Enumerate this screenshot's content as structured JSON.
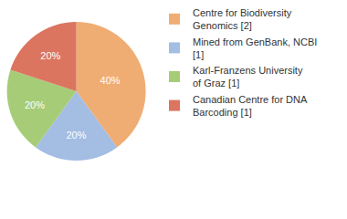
{
  "chart_data": {
    "type": "pie",
    "categories": [
      "Centre for Biodiversity Genomics [2]",
      "Mined from GenBank, NCBI [1]",
      "Karl-Franzens University of Graz [1]",
      "Canadian Centre for DNA Barcoding [1]"
    ],
    "values": [
      40,
      20,
      20,
      20
    ],
    "value_labels": [
      "40%",
      "20%",
      "20%",
      "20%"
    ],
    "colors": [
      "#f0ad73",
      "#a3bde3",
      "#a6cc78",
      "#db7560"
    ],
    "data_labels": true,
    "legend": "upper right"
  }
}
